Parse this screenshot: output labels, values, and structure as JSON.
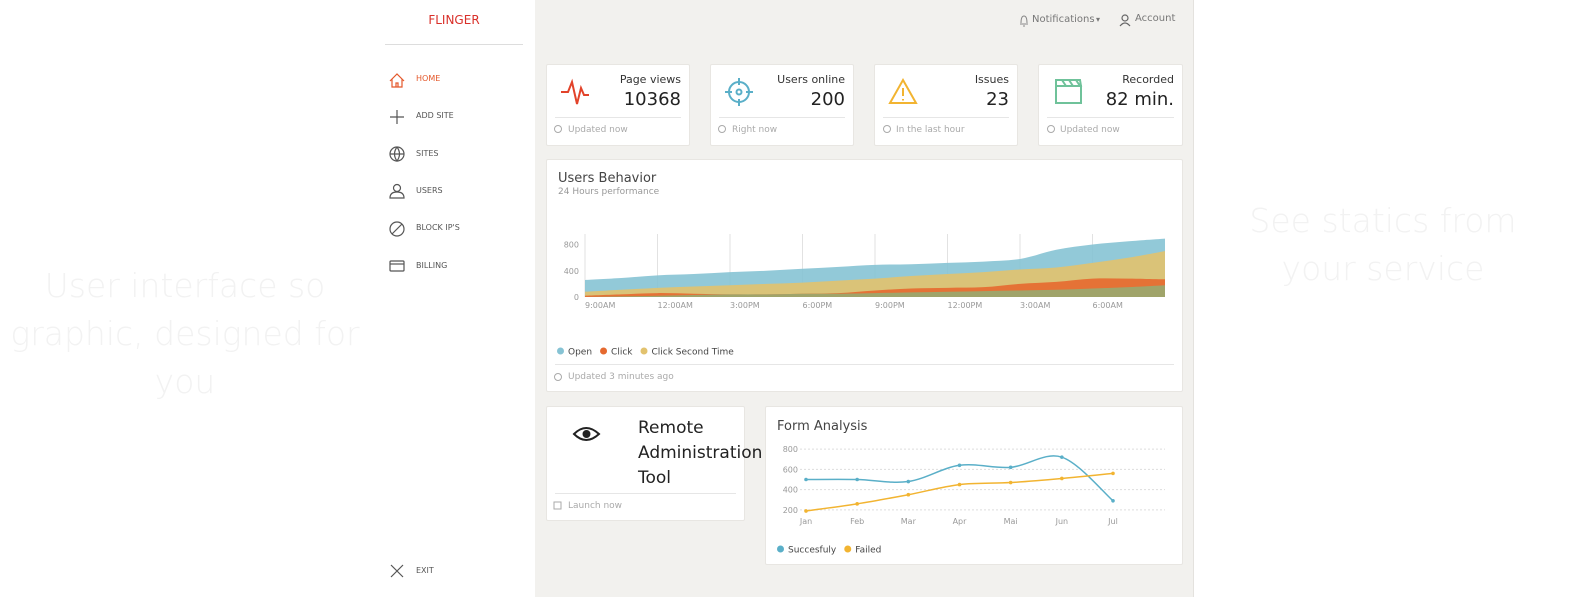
{
  "sidebar": {
    "brand": "FLINGER",
    "menu": [
      "HOME",
      "ADD SITE",
      "SITES",
      "USERS",
      "BLOCK IP'S",
      "BILLING"
    ],
    "exit": "EXIT"
  },
  "header": {
    "notifications": "Notifications",
    "account": "Account"
  },
  "hero": {
    "left": "User interface so graphic, designed for you",
    "right": "See statics from your service"
  },
  "stats": [
    {
      "title": "Page views",
      "value": 10368,
      "footer": "Updated now"
    },
    {
      "title": "Users online",
      "value": 200,
      "footer": "Right now"
    },
    {
      "title": "Issues",
      "value": 23,
      "footer": "In the last hour"
    },
    {
      "title": "Recorded",
      "value": "82 min.",
      "footer": "Updated now"
    }
  ],
  "remote": {
    "title": "Remote Administration Tool",
    "action": "Launch now"
  },
  "chart_data": [
    {
      "type": "area",
      "title": "Users Behavior",
      "subtitle": "24 Hours performance",
      "footer": "Updated 3 minutes ago",
      "categories": [
        "9:00AM",
        null,
        "12:00AM",
        null,
        "3:00PM",
        null,
        "6:00PM",
        null,
        "9:00PM",
        null,
        "12:00PM",
        null,
        "3:00AM",
        null,
        "6:00AM",
        null,
        null
      ],
      "series": [
        {
          "name": "Open",
          "color": "#86c3d4",
          "values": [
            260,
            290,
            330,
            350,
            380,
            400,
            430,
            460,
            490,
            500,
            520,
            540,
            580,
            720,
            800,
            850,
            890
          ]
        },
        {
          "name": "Click",
          "color": "#e5692f",
          "values": [
            20,
            40,
            60,
            50,
            40,
            40,
            50,
            60,
            100,
            130,
            140,
            150,
            200,
            230,
            280,
            280,
            270
          ]
        },
        {
          "name": "Click Second Time",
          "color": "#e2c26e",
          "values": [
            80,
            110,
            140,
            160,
            180,
            200,
            220,
            250,
            280,
            320,
            350,
            380,
            420,
            450,
            520,
            600,
            700
          ]
        },
        {
          "color": "#98aa70",
          "values": [
            0,
            10,
            20,
            30,
            40,
            40,
            50,
            50,
            60,
            70,
            80,
            90,
            100,
            110,
            130,
            150,
            180
          ]
        }
      ],
      "ylim": [
        0,
        900
      ],
      "yticks": [
        0,
        400,
        800
      ],
      "grid": "vertical"
    },
    {
      "type": "line",
      "title": "Form Analysis",
      "categories": [
        "Jan",
        "Feb",
        "Mar",
        "Apr",
        "Mai",
        "Jun",
        "Jul"
      ],
      "series": [
        {
          "name": "Succesfuly",
          "color": "#5aafc8",
          "values": [
            500,
            500,
            480,
            640,
            620,
            720,
            290
          ]
        },
        {
          "name": "Failed",
          "color": "#f2b431",
          "values": [
            190,
            260,
            350,
            450,
            470,
            510,
            560
          ]
        }
      ],
      "ylim": [
        150,
        850
      ],
      "yticks": [
        200,
        400,
        600,
        800
      ],
      "grid": "horizontal",
      "markers": true
    }
  ]
}
